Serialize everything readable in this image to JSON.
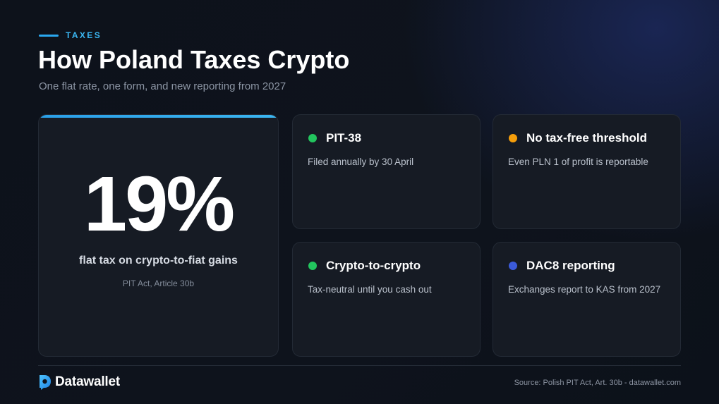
{
  "header": {
    "eyebrow": "TAXES",
    "title": "How Poland Taxes Crypto",
    "subtitle": "One flat rate, one form, and new reporting from 2027"
  },
  "hero": {
    "value": "19%",
    "caption": "flat tax on crypto-to-fiat gains",
    "source": "PIT Act, Article 30b"
  },
  "cards": [
    {
      "title": "PIT-38",
      "body": "Filed annually by 30 April",
      "dot_color": "#22c55e"
    },
    {
      "title": "No tax-free threshold",
      "body": "Even PLN 1 of profit is reportable",
      "dot_color": "#f59e0b"
    },
    {
      "title": "Crypto-to-crypto",
      "body": "Tax-neutral until you cash out",
      "dot_color": "#22c55e"
    },
    {
      "title": "DAC8 reporting",
      "body": "Exchanges report to KAS from 2027",
      "dot_color": "#3b5bdb"
    }
  ],
  "footer": {
    "brand": "Datawallet",
    "brand_icon": "datawallet-logo-icon",
    "source": "Source: Polish PIT Act, Art. 30b - datawallet.com"
  },
  "colors": {
    "accent": "#2aa8f0",
    "background": "#0d121b",
    "card": "#161b24"
  }
}
